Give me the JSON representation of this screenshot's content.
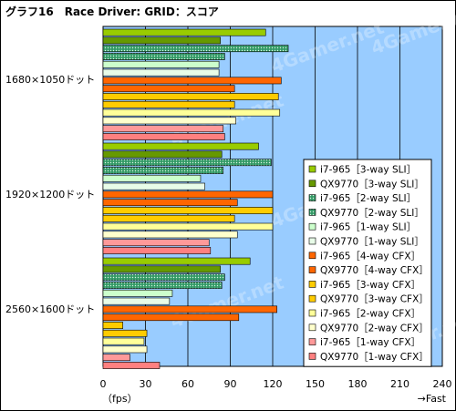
{
  "chart_data": {
    "type": "bar",
    "orientation": "horizontal",
    "title": "グラフ16　Race Driver: GRID：スコア",
    "categories": [
      "1680×1050ドット",
      "1920×1200ドット",
      "2560×1600ドット"
    ],
    "xlim": [
      0,
      240
    ],
    "xticks": [
      0,
      30,
      60,
      90,
      120,
      150,
      180,
      210,
      240
    ],
    "xlabel_left": "（fps）",
    "xlabel_right": "→Fast",
    "grid": true,
    "legend_position": "right",
    "watermark": "4Gamer.net",
    "series": [
      {
        "name": "i7-965［3-way SLI］",
        "color": "#99cc00",
        "pattern": "solid",
        "values": [
          115,
          110,
          104
        ]
      },
      {
        "name": "QX9770［3-way SLI］",
        "color": "#669900",
        "pattern": "solid",
        "values": [
          83,
          84,
          83
        ]
      },
      {
        "name": "i7-965［2-way SLI］",
        "color": "#339966",
        "pattern": "dots",
        "values": [
          131,
          119,
          86
        ]
      },
      {
        "name": "QX9770［2-way SLI］",
        "color": "#2e8b57",
        "pattern": "dots",
        "values": [
          86,
          85,
          84
        ]
      },
      {
        "name": "i7-965［1-way SLI］",
        "color": "#ccffcc",
        "pattern": "solid",
        "values": [
          82,
          69,
          49
        ]
      },
      {
        "name": "QX9770［1-way SLI］",
        "color": "#e8fce8",
        "pattern": "solid",
        "values": [
          82,
          72,
          47
        ]
      },
      {
        "name": "i7-965［4-way CFX］",
        "color": "#ff6600",
        "pattern": "solid",
        "values": [
          126,
          120,
          123
        ]
      },
      {
        "name": "QX9770［4-way CFX］",
        "color": "#ff6600",
        "pattern": "solid",
        "values": [
          93,
          95,
          96
        ]
      },
      {
        "name": "i7-965［3-way CFX］",
        "color": "#ffcc00",
        "pattern": "solid",
        "values": [
          124,
          120,
          14
        ]
      },
      {
        "name": "QX9770［3-way CFX］",
        "color": "#ffcc00",
        "pattern": "solid",
        "values": [
          93,
          93,
          31
        ]
      },
      {
        "name": "i7-965［2-way CFX］",
        "color": "#ffff99",
        "pattern": "solid",
        "values": [
          125,
          120,
          29
        ]
      },
      {
        "name": "QX9770［2-way CFX］",
        "color": "#ffffcc",
        "pattern": "solid",
        "values": [
          94,
          95,
          31
        ]
      },
      {
        "name": "i7-965［1-way CFX］",
        "color": "#ff9999",
        "pattern": "solid",
        "values": [
          85,
          75,
          19
        ]
      },
      {
        "name": "QX9770［1-way CFX］",
        "color": "#ff8080",
        "pattern": "solid",
        "values": [
          86,
          76,
          40
        ]
      }
    ]
  }
}
